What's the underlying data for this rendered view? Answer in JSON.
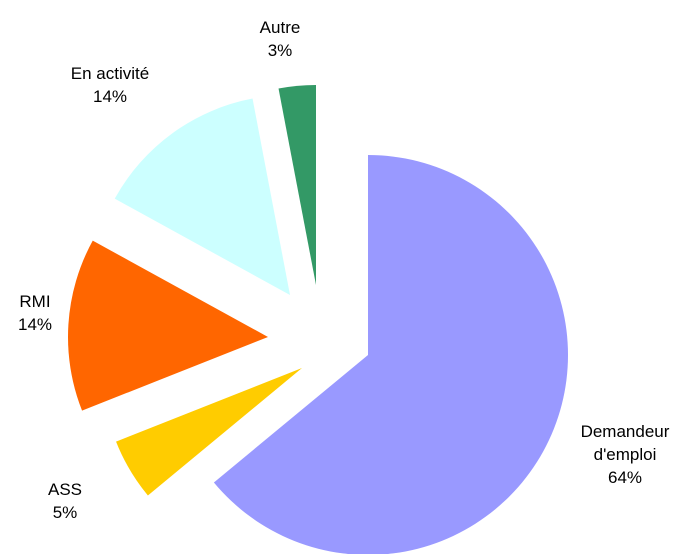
{
  "chart_data": {
    "type": "pie",
    "categories": [
      "Demandeur d'emploi",
      "ASS",
      "RMI",
      "En activité",
      "Autre"
    ],
    "values": [
      64,
      5,
      14,
      14,
      3
    ],
    "value_labels": [
      "64%",
      "5%",
      "14%",
      "14%",
      "3%"
    ],
    "colors": [
      "#9999ff",
      "#ffcc00",
      "#ff6600",
      "#ccffff",
      "#339966"
    ]
  }
}
